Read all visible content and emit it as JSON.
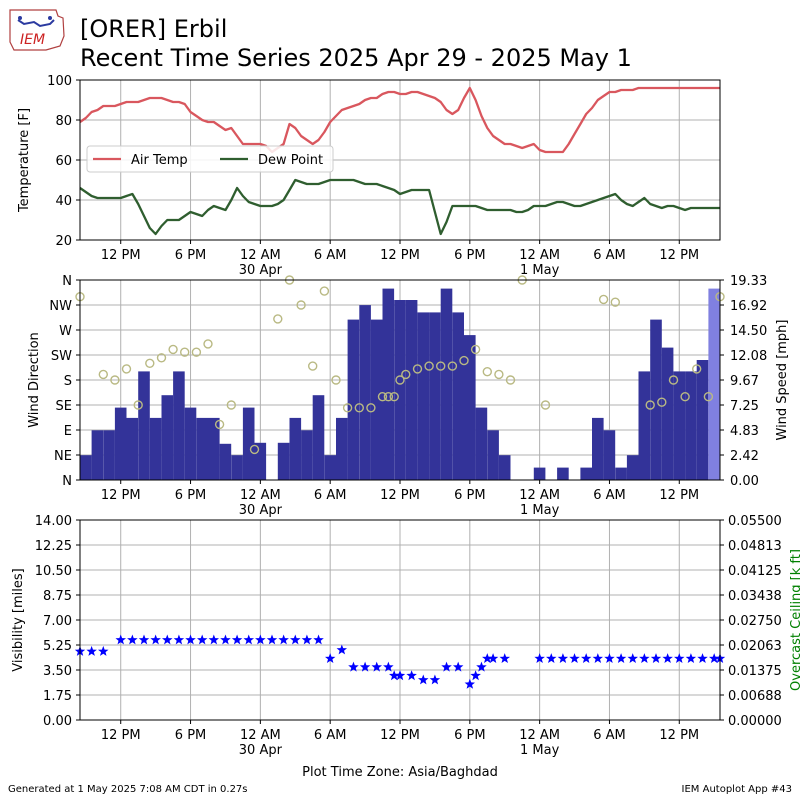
{
  "header": {
    "title_line1": "[ORER] Erbil",
    "title_line2": "Recent Time Series 2025 Apr 29 - 2025 May 1",
    "logo_text": "IEM"
  },
  "footer": {
    "generated": "Generated at 1 May 2025 7:08 AM CDT in 0.27s",
    "app": "IEM Autoplot App #43"
  },
  "colors": {
    "air_temp": "#d9575e",
    "dew_point": "#2f5e2f",
    "wind_bar": "#333399",
    "wind_bar_last": "#8080e0",
    "wind_dir": "#b9b983",
    "visibility": "#0000ff",
    "ceiling_label": "#008000",
    "grid": "#b0b0b0"
  },
  "x_axis": {
    "tick_labels": [
      "12 PM",
      "6 PM",
      "12 AM",
      "6 AM",
      "12 PM",
      "6 PM",
      "12 AM",
      "6 AM",
      "12 PM"
    ],
    "tick_hours": [
      12,
      18,
      24,
      30,
      36,
      42,
      48,
      54,
      60
    ],
    "date_labels": [
      {
        "hour": 24,
        "text": "30 Apr"
      },
      {
        "hour": 48,
        "text": "1 May"
      }
    ],
    "range_hours": [
      8.5,
      63.5
    ],
    "timezone_label": "Plot Time Zone: Asia/Baghdad"
  },
  "chart_data": [
    {
      "type": "line",
      "ylabel": "Temperature [F]",
      "ylim": [
        20,
        100
      ],
      "yticks": [
        "20",
        "40",
        "60",
        "80",
        "100"
      ],
      "grid": true,
      "legend": "upper-left",
      "series": [
        {
          "name": "Air Temp",
          "x": [
            8.5,
            9,
            9.5,
            10,
            10.5,
            11,
            11.5,
            12,
            12.5,
            13,
            13.5,
            14,
            14.5,
            15,
            15.5,
            16,
            16.5,
            17,
            17.5,
            18,
            18.5,
            19,
            19.5,
            20,
            20.5,
            21,
            21.5,
            22,
            22.5,
            23,
            23.5,
            24,
            24.5,
            25,
            25.5,
            26,
            26.5,
            27,
            27.5,
            28,
            28.5,
            29,
            29.5,
            30,
            30.5,
            31,
            31.5,
            32,
            32.5,
            33,
            33.5,
            34,
            34.5,
            35,
            35.5,
            36,
            36.5,
            37,
            37.5,
            38,
            38.5,
            39,
            39.5,
            40,
            40.5,
            41,
            41.5,
            42,
            42.5,
            43,
            43.5,
            44,
            44.5,
            45,
            45.5,
            46,
            46.5,
            47,
            47.5,
            48,
            48.5,
            49,
            49.5,
            50,
            50.5,
            51,
            51.5,
            52,
            52.5,
            53,
            53.5,
            54,
            54.5,
            55,
            55.5,
            56,
            56.5,
            57,
            57.5,
            58,
            58.5,
            59,
            59.5,
            60,
            60.5,
            61,
            61.5,
            62,
            62.5,
            63,
            63.5
          ],
          "values": [
            79,
            81,
            84,
            85,
            87,
            87,
            87,
            88,
            89,
            89,
            89,
            90,
            91,
            91,
            91,
            90,
            89,
            89,
            88,
            84,
            82,
            80,
            79,
            79,
            77,
            75,
            76,
            72,
            68,
            68,
            68,
            68,
            67,
            64,
            66,
            68,
            78,
            76,
            72,
            70,
            68,
            70,
            74,
            79,
            82,
            85,
            86,
            87,
            88,
            90,
            91,
            91,
            93,
            94,
            94,
            93,
            93,
            94,
            94,
            93,
            92,
            91,
            89,
            85,
            83,
            85,
            91,
            96,
            90,
            82,
            76,
            72,
            70,
            68,
            68,
            67,
            66,
            67,
            68,
            65,
            64,
            64,
            64,
            64,
            68,
            73,
            78,
            83,
            86,
            90,
            92,
            94,
            94,
            95,
            95,
            95,
            96,
            96,
            96,
            96,
            96,
            96,
            96,
            96,
            96,
            96,
            96,
            96,
            96,
            96,
            96
          ]
        },
        {
          "name": "Dew Point",
          "x": [
            8.5,
            9,
            9.5,
            10,
            10.5,
            11,
            11.5,
            12,
            12.5,
            13,
            13.5,
            14,
            14.5,
            15,
            15.5,
            16,
            16.5,
            17,
            17.5,
            18,
            18.5,
            19,
            19.5,
            20,
            20.5,
            21,
            21.5,
            22,
            22.5,
            23,
            23.5,
            24,
            24.5,
            25,
            25.5,
            26,
            26.5,
            27,
            27.5,
            28,
            28.5,
            29,
            29.5,
            30,
            30.5,
            31,
            31.5,
            32,
            32.5,
            33,
            33.5,
            34,
            34.5,
            35,
            35.5,
            36,
            36.5,
            37,
            37.5,
            38,
            38.5,
            39,
            39.5,
            40,
            40.5,
            41,
            41.5,
            42,
            42.5,
            43,
            43.5,
            44,
            44.5,
            45,
            45.5,
            46,
            46.5,
            47,
            47.5,
            48,
            48.5,
            49,
            49.5,
            50,
            50.5,
            51,
            51.5,
            52,
            52.5,
            53,
            53.5,
            54,
            54.5,
            55,
            55.5,
            56,
            56.5,
            57,
            57.5,
            58,
            58.5,
            59,
            59.5,
            60,
            60.5,
            61,
            61.5,
            62,
            62.5,
            63,
            63.5
          ],
          "values": [
            46,
            44,
            42,
            41,
            41,
            41,
            41,
            41,
            42,
            43,
            38,
            32,
            26,
            23,
            27,
            30,
            30,
            30,
            32,
            34,
            33,
            32,
            35,
            37,
            36,
            35,
            40,
            46,
            42,
            39,
            38,
            37,
            37,
            37,
            38,
            40,
            45,
            50,
            49,
            48,
            48,
            48,
            49,
            50,
            50,
            50,
            50,
            50,
            49,
            48,
            48,
            48,
            47,
            46,
            45,
            43,
            44,
            45,
            45,
            45,
            45,
            34,
            23,
            29,
            37,
            37,
            37,
            37,
            37,
            36,
            35,
            35,
            35,
            35,
            35,
            34,
            34,
            35,
            37,
            37,
            37,
            38,
            39,
            39,
            38,
            37,
            37,
            38,
            39,
            40,
            41,
            42,
            43,
            40,
            38,
            37,
            39,
            41,
            38,
            37,
            36,
            37,
            37,
            36,
            35,
            36,
            36,
            36,
            36,
            36,
            36
          ]
        }
      ]
    },
    {
      "type": "bar",
      "ylabel": "Wind Direction",
      "y2label": "Wind Speed [mph]",
      "dir_ticks": [
        "N",
        "NE",
        "E",
        "SE",
        "S",
        "SW",
        "W",
        "NW",
        "N"
      ],
      "speed_ticks": [
        "0.00",
        "2.42",
        "4.83",
        "7.25",
        "9.67",
        "12.08",
        "14.50",
        "16.92",
        "19.33"
      ],
      "speed_lim": [
        0,
        19.33
      ],
      "grid": true,
      "series": [
        {
          "name": "Wind Speed",
          "x": [
            9,
            10,
            11,
            12,
            13,
            14,
            15,
            16,
            17,
            18,
            19,
            20,
            21,
            22,
            23,
            24,
            25,
            26,
            27,
            28,
            29,
            30,
            31,
            32,
            33,
            34,
            35,
            36,
            37,
            38,
            39,
            40,
            41,
            42,
            43,
            44,
            45,
            46,
            47,
            48,
            49,
            50,
            51,
            52,
            53,
            54,
            55,
            56,
            57,
            58,
            59,
            60,
            61,
            62,
            63
          ],
          "values": [
            2.4,
            4.8,
            4.8,
            7.0,
            6.0,
            10.5,
            6.0,
            8.2,
            10.5,
            7.0,
            6.0,
            6.0,
            3.5,
            2.4,
            7.0,
            3.6,
            0,
            3.6,
            6.0,
            4.8,
            8.2,
            2.4,
            6.0,
            15.5,
            16.9,
            15.5,
            18.5,
            17.4,
            17.4,
            16.2,
            16.2,
            18.5,
            16.2,
            14.0,
            7.0,
            4.8,
            2.4,
            0,
            0,
            1.2,
            0,
            1.2,
            0,
            1.2,
            6.0,
            4.8,
            1.2,
            2.4,
            10.5,
            15.5,
            12.8,
            10.5,
            10.5,
            11.6,
            18.5
          ]
        },
        {
          "name": "Wind Direction",
          "x": [
            8.5,
            10.5,
            11.5,
            12.5,
            13.5,
            14.5,
            15.5,
            16.5,
            17.5,
            18.5,
            19.5,
            20.5,
            21.5,
            23.5,
            25.5,
            26.5,
            27.5,
            28.5,
            29.5,
            30.5,
            31.5,
            32.5,
            33.5,
            34.5,
            35,
            35.5,
            36,
            36.5,
            37.5,
            38.5,
            39.5,
            40.5,
            41.5,
            42.5,
            43.5,
            44.5,
            45.5,
            46.5,
            48.5,
            53.5,
            54.5,
            57.5,
            58.5,
            59.5,
            60.5,
            61.5,
            62.5,
            63.5
          ],
          "values": [
            330,
            190,
            180,
            200,
            135,
            210,
            220,
            235,
            230,
            230,
            245,
            100,
            135,
            55,
            290,
            360,
            315,
            205,
            340,
            180,
            130,
            130,
            130,
            150,
            150,
            150,
            180,
            190,
            200,
            205,
            205,
            205,
            215,
            235,
            195,
            190,
            180,
            360,
            135,
            325,
            320,
            135,
            140,
            180,
            150,
            200,
            150,
            330
          ]
        }
      ]
    },
    {
      "type": "scatter",
      "ylabel": "Visibility [miles]",
      "y2label": "Overcast Ceiling [k ft]",
      "ylim": [
        0,
        14
      ],
      "yticks": [
        "0.00",
        "1.75",
        "3.50",
        "5.25",
        "7.00",
        "8.75",
        "10.50",
        "12.25",
        "14.00"
      ],
      "y2ticks": [
        "0.00000",
        "0.00688",
        "0.01375",
        "0.02063",
        "0.02750",
        "0.03438",
        "0.04125",
        "0.04813",
        "0.05500"
      ],
      "grid": true,
      "series": [
        {
          "name": "Visibility",
          "x": [
            8.5,
            9.5,
            10.5,
            12,
            13,
            14,
            15,
            16,
            17,
            18,
            19,
            20,
            21,
            22,
            23,
            24,
            25,
            26,
            27,
            28,
            29,
            30,
            31,
            32,
            33,
            34,
            35,
            35.5,
            36,
            37,
            38,
            39,
            40,
            41,
            42,
            42.5,
            43,
            43.5,
            44,
            45,
            48,
            49,
            50,
            51,
            52,
            53,
            54,
            55,
            56,
            57,
            58,
            59,
            60,
            61,
            62,
            63,
            63.5
          ],
          "values": [
            4.8,
            4.8,
            4.8,
            5.6,
            5.6,
            5.6,
            5.6,
            5.6,
            5.6,
            5.6,
            5.6,
            5.6,
            5.6,
            5.6,
            5.6,
            5.6,
            5.6,
            5.6,
            5.6,
            5.6,
            5.6,
            4.3,
            4.9,
            3.7,
            3.7,
            3.7,
            3.7,
            3.1,
            3.1,
            3.1,
            2.8,
            2.8,
            3.7,
            3.7,
            2.5,
            3.1,
            3.7,
            4.3,
            4.3,
            4.3,
            4.3,
            4.3,
            4.3,
            4.3,
            4.3,
            4.3,
            4.3,
            4.3,
            4.3,
            4.3,
            4.3,
            4.3,
            4.3,
            4.3,
            4.3,
            4.3,
            4.3
          ]
        }
      ]
    }
  ]
}
